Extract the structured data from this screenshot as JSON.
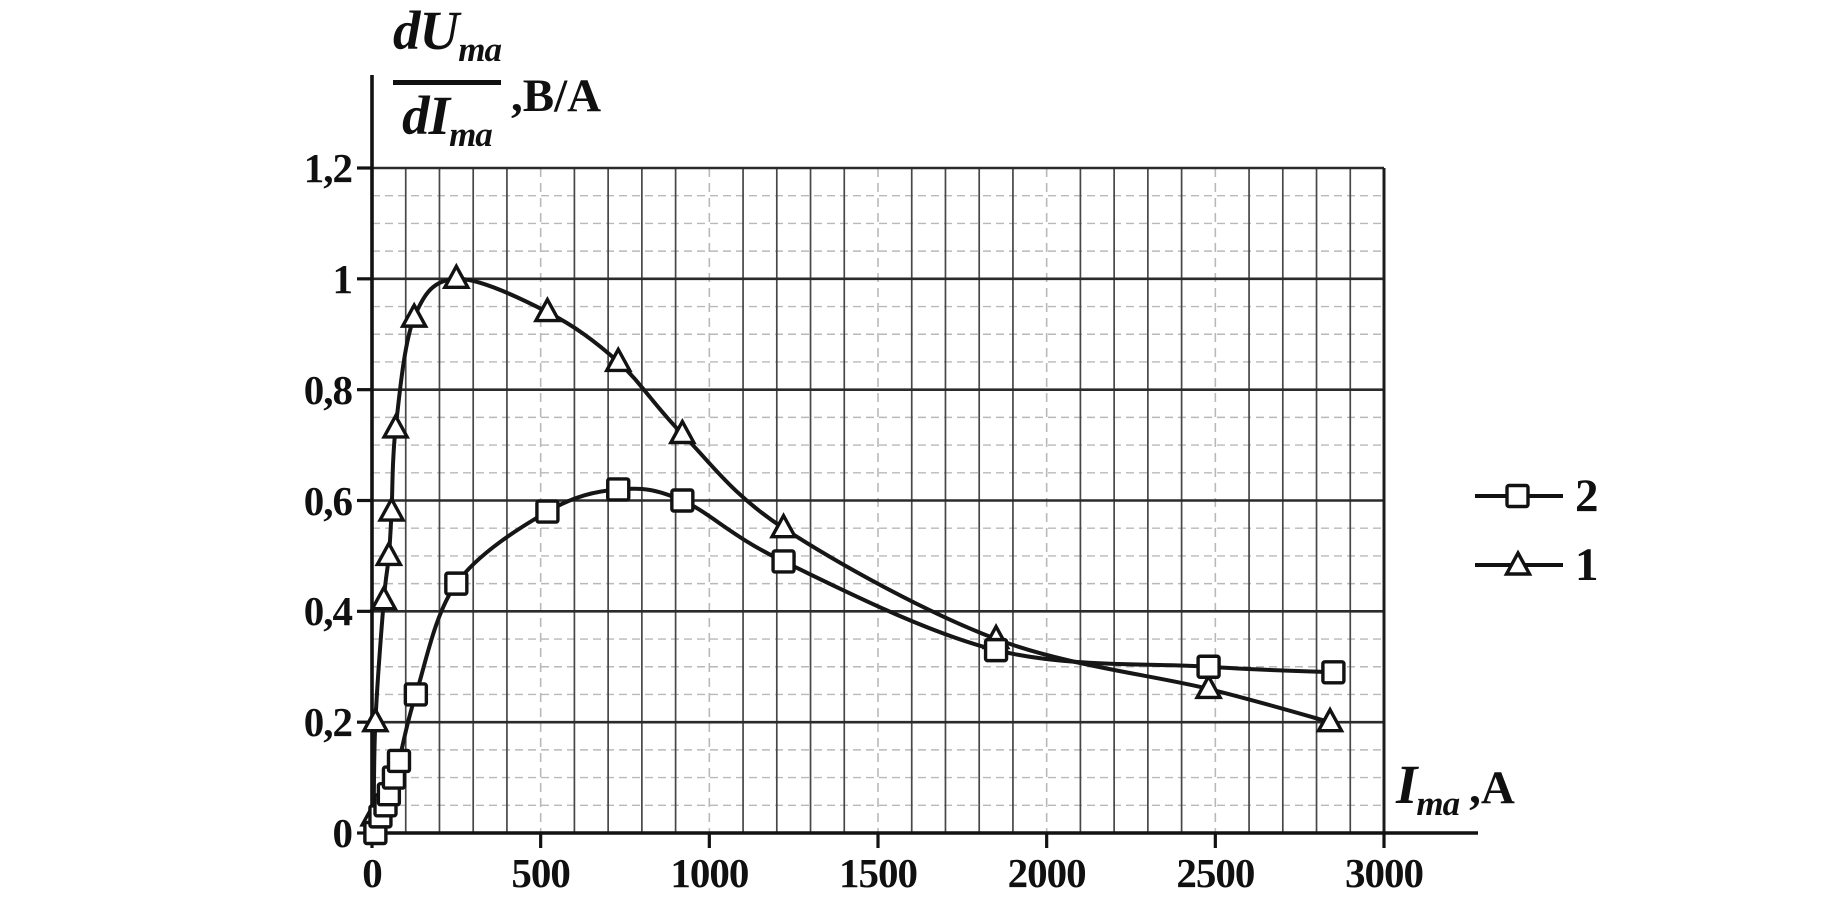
{
  "figure": {
    "background": "#ffffff",
    "ink": "#121212",
    "curve_color": "#161616",
    "grid_dark": "#474747",
    "grid_major_h": "#2b2b2b",
    "grid_light": "#b9b9b9",
    "marker_fill": "#ffffff"
  },
  "y_axis": {
    "title_numerator": "dU",
    "title_numerator_sub": "ma",
    "title_denominator": "dI",
    "title_denominator_sub": "ma",
    "title_unit": ",В/А",
    "tick_labels": [
      "1,2",
      "1",
      "0,8",
      "0,6",
      "0,4",
      "0,2",
      "0"
    ],
    "tick_values": [
      1.2,
      1.0,
      0.8,
      0.6,
      0.4,
      0.2,
      0
    ]
  },
  "x_axis": {
    "title_symbol": "I",
    "title_symbol_sub": "ma",
    "title_unit": ",А",
    "tick_labels": [
      "0",
      "500",
      "1000",
      "1500",
      "2000",
      "2500",
      "3000"
    ],
    "tick_values": [
      0,
      500,
      1000,
      1500,
      2000,
      2500,
      3000
    ]
  },
  "legend": [
    {
      "label": "2",
      "marker": "square"
    },
    {
      "label": "1",
      "marker": "triangle"
    }
  ],
  "chart_data": {
    "type": "line",
    "title": "",
    "xlabel": "I_ma, А",
    "ylabel": "dU_ma/dI_ma, В/А",
    "xlim": [
      0,
      3000
    ],
    "ylim": [
      0,
      1.2
    ],
    "x_grid_step": 100,
    "x_major_tick_step": 500,
    "y_major_step": 0.2,
    "y_minor_step": 0.05,
    "grid": "on",
    "legend_position": "right-outside",
    "series": [
      {
        "name": "1",
        "marker": "triangle",
        "x": [
          5,
          10,
          35,
          50,
          58,
          70,
          125,
          250,
          520,
          730,
          920,
          1220,
          1850,
          2480,
          2840
        ],
        "y": [
          0.03,
          0.2,
          0.42,
          0.5,
          0.58,
          0.73,
          0.93,
          1.0,
          0.94,
          0.85,
          0.72,
          0.55,
          0.35,
          0.26,
          0.2
        ]
      },
      {
        "name": "2",
        "marker": "square",
        "x": [
          10,
          25,
          40,
          50,
          65,
          80,
          130,
          250,
          520,
          730,
          920,
          1220,
          1850,
          2480,
          2850
        ],
        "y": [
          0.0,
          0.03,
          0.05,
          0.07,
          0.1,
          0.13,
          0.25,
          0.45,
          0.58,
          0.62,
          0.6,
          0.49,
          0.33,
          0.3,
          0.29
        ]
      }
    ]
  }
}
